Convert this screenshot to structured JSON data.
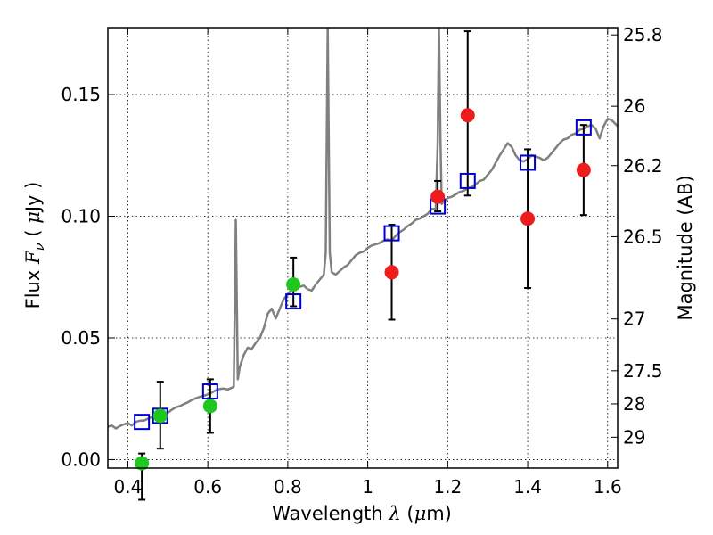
{
  "chart_data": {
    "type": "scatter",
    "title": "",
    "xlabel": {
      "prefix": "Wavelength  ",
      "symbol": "λ",
      "suffix": " (",
      "unit_symbol": "μ",
      "unit": "m)"
    },
    "ylabel": {
      "prefix": "Flux  ",
      "symbol": "F",
      "subscript": "ν",
      "mid": "  ( ",
      "unit_symbol": "μ",
      "suffix": "Jy )"
    },
    "y2label": "Magnitude (AB)",
    "xlim": [
      0.35,
      1.625
    ],
    "ylim": [
      -0.0035,
      0.1775
    ],
    "grid": true,
    "x_ticks": [
      0.4,
      0.6,
      0.8,
      1.0,
      1.2,
      1.4,
      1.6
    ],
    "x_tick_labels": [
      "0.4",
      "0.6",
      "0.8",
      "1",
      "1.2",
      "1.4",
      "1.6"
    ],
    "y_ticks": [
      0.0,
      0.05,
      0.1,
      0.15
    ],
    "y_tick_labels": [
      "0.00",
      "0.05",
      "0.10",
      "0.15"
    ],
    "y2_ticks": [
      {
        "label": "25.8",
        "flux": 0.1745
      },
      {
        "label": "26",
        "flux": 0.1452
      },
      {
        "label": "26.2",
        "flux": 0.1208
      },
      {
        "label": "26.5",
        "flux": 0.0916
      },
      {
        "label": "27",
        "flux": 0.0578
      },
      {
        "label": "27.5",
        "flux": 0.0365
      },
      {
        "label": "28",
        "flux": 0.0229
      },
      {
        "label": "29",
        "flux": 0.0092
      }
    ],
    "colors": {
      "spectrum": "#808080",
      "green": "#1ec81e",
      "red": "#ee1c1c",
      "model": "#0000cc",
      "error": "#000000",
      "grid": "#000000"
    },
    "spectrum": [
      [
        0.35,
        0.0135
      ],
      [
        0.36,
        0.014
      ],
      [
        0.37,
        0.0128
      ],
      [
        0.38,
        0.0138
      ],
      [
        0.39,
        0.0145
      ],
      [
        0.4,
        0.015
      ],
      [
        0.41,
        0.014
      ],
      [
        0.42,
        0.0155
      ],
      [
        0.43,
        0.016
      ],
      [
        0.44,
        0.016
      ],
      [
        0.45,
        0.0168
      ],
      [
        0.46,
        0.0175
      ],
      [
        0.47,
        0.018
      ],
      [
        0.48,
        0.0185
      ],
      [
        0.49,
        0.0185
      ],
      [
        0.5,
        0.0192
      ],
      [
        0.51,
        0.0205
      ],
      [
        0.52,
        0.0215
      ],
      [
        0.53,
        0.022
      ],
      [
        0.54,
        0.0228
      ],
      [
        0.55,
        0.0235
      ],
      [
        0.56,
        0.0245
      ],
      [
        0.57,
        0.0252
      ],
      [
        0.58,
        0.0258
      ],
      [
        0.59,
        0.0262
      ],
      [
        0.6,
        0.0268
      ],
      [
        0.61,
        0.0275
      ],
      [
        0.62,
        0.0285
      ],
      [
        0.63,
        0.029
      ],
      [
        0.64,
        0.0292
      ],
      [
        0.65,
        0.0288
      ],
      [
        0.66,
        0.0295
      ],
      [
        0.665,
        0.03
      ],
      [
        0.67,
        0.0985
      ],
      [
        0.675,
        0.033
      ],
      [
        0.68,
        0.038
      ],
      [
        0.69,
        0.043
      ],
      [
        0.7,
        0.046
      ],
      [
        0.71,
        0.0455
      ],
      [
        0.72,
        0.048
      ],
      [
        0.73,
        0.05
      ],
      [
        0.74,
        0.054
      ],
      [
        0.75,
        0.06
      ],
      [
        0.76,
        0.062
      ],
      [
        0.77,
        0.058
      ],
      [
        0.78,
        0.062
      ],
      [
        0.79,
        0.066
      ],
      [
        0.8,
        0.068
      ],
      [
        0.81,
        0.07
      ],
      [
        0.82,
        0.07
      ],
      [
        0.83,
        0.071
      ],
      [
        0.84,
        0.0715
      ],
      [
        0.85,
        0.07
      ],
      [
        0.86,
        0.0695
      ],
      [
        0.87,
        0.072
      ],
      [
        0.88,
        0.074
      ],
      [
        0.89,
        0.076
      ],
      [
        0.895,
        0.085
      ],
      [
        0.9,
        0.178
      ],
      [
        0.905,
        0.085
      ],
      [
        0.91,
        0.077
      ],
      [
        0.92,
        0.076
      ],
      [
        0.93,
        0.0775
      ],
      [
        0.94,
        0.079
      ],
      [
        0.95,
        0.08
      ],
      [
        0.96,
        0.082
      ],
      [
        0.97,
        0.084
      ],
      [
        0.98,
        0.085
      ],
      [
        0.99,
        0.0855
      ],
      [
        1.0,
        0.087
      ],
      [
        1.01,
        0.088
      ],
      [
        1.02,
        0.0885
      ],
      [
        1.03,
        0.089
      ],
      [
        1.04,
        0.09
      ],
      [
        1.05,
        0.0905
      ],
      [
        1.06,
        0.09
      ],
      [
        1.07,
        0.092
      ],
      [
        1.08,
        0.0935
      ],
      [
        1.09,
        0.0945
      ],
      [
        1.1,
        0.096
      ],
      [
        1.11,
        0.097
      ],
      [
        1.12,
        0.0985
      ],
      [
        1.13,
        0.099
      ],
      [
        1.14,
        0.1
      ],
      [
        1.15,
        0.101
      ],
      [
        1.16,
        0.103
      ],
      [
        1.17,
        0.103
      ],
      [
        1.175,
        0.13
      ],
      [
        1.178,
        0.178
      ],
      [
        1.182,
        0.13
      ],
      [
        1.185,
        0.105
      ],
      [
        1.19,
        0.106
      ],
      [
        1.2,
        0.1075
      ],
      [
        1.21,
        0.108
      ],
      [
        1.22,
        0.109
      ],
      [
        1.23,
        0.11
      ],
      [
        1.24,
        0.1105
      ],
      [
        1.25,
        0.1115
      ],
      [
        1.26,
        0.112
      ],
      [
        1.27,
        0.113
      ],
      [
        1.28,
        0.1145
      ],
      [
        1.29,
        0.115
      ],
      [
        1.3,
        0.117
      ],
      [
        1.31,
        0.119
      ],
      [
        1.32,
        0.122
      ],
      [
        1.33,
        0.125
      ],
      [
        1.34,
        0.1275
      ],
      [
        1.35,
        0.13
      ],
      [
        1.36,
        0.1285
      ],
      [
        1.37,
        0.125
      ],
      [
        1.38,
        0.123
      ],
      [
        1.39,
        0.1225
      ],
      [
        1.4,
        0.1235
      ],
      [
        1.41,
        0.125
      ],
      [
        1.42,
        0.1245
      ],
      [
        1.43,
        0.124
      ],
      [
        1.44,
        0.123
      ],
      [
        1.45,
        0.124
      ],
      [
        1.46,
        0.126
      ],
      [
        1.47,
        0.128
      ],
      [
        1.48,
        0.13
      ],
      [
        1.49,
        0.1315
      ],
      [
        1.5,
        0.132
      ],
      [
        1.51,
        0.1335
      ],
      [
        1.52,
        0.134
      ],
      [
        1.53,
        0.1355
      ],
      [
        1.54,
        0.136
      ],
      [
        1.55,
        0.137
      ],
      [
        1.56,
        0.1375
      ],
      [
        1.57,
        0.136
      ],
      [
        1.58,
        0.132
      ],
      [
        1.59,
        0.137
      ],
      [
        1.6,
        0.14
      ],
      [
        1.61,
        0.1395
      ],
      [
        1.625,
        0.137
      ]
    ],
    "series": [
      {
        "name": "model-bandpass-flux",
        "marker": "open-square",
        "x": [
          0.435,
          0.481,
          0.606,
          0.814,
          1.06,
          1.175,
          1.25,
          1.4,
          1.54
        ],
        "y": [
          0.0155,
          0.018,
          0.028,
          0.065,
          0.093,
          0.104,
          0.1145,
          0.122,
          0.1365
        ]
      },
      {
        "name": "optical-detections",
        "marker": "filled-circle",
        "color": "green",
        "x": [
          0.435,
          0.481,
          0.606,
          0.814
        ],
        "y": [
          -0.0015,
          0.018,
          0.022,
          0.072
        ],
        "err_low": [
          0.015,
          0.0135,
          0.011,
          0.009
        ],
        "err_high": [
          0.004,
          0.014,
          0.011,
          0.011
        ]
      },
      {
        "name": "nir-detections",
        "marker": "filled-circle",
        "color": "red",
        "x": [
          1.06,
          1.175,
          1.25,
          1.4,
          1.54
        ],
        "y": [
          0.077,
          0.108,
          0.1415,
          0.099,
          0.119
        ],
        "err_low": [
          0.0195,
          0.006,
          0.033,
          0.0285,
          0.0185
        ],
        "err_high": [
          0.0195,
          0.0065,
          0.0345,
          0.0285,
          0.0185
        ]
      }
    ]
  }
}
